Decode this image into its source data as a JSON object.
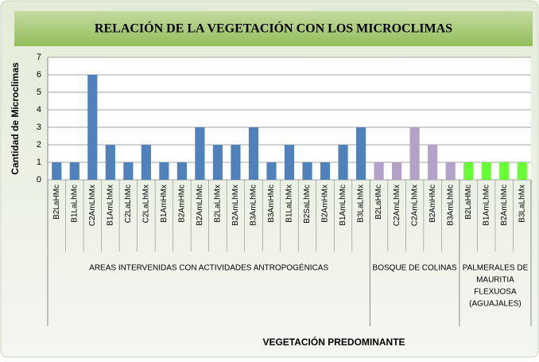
{
  "chart_data": {
    "type": "bar",
    "title": "RELACIÓN DE LA VEGETACIÓN CON LOS MICROCLIMAS",
    "y_label": "Cantidad de Microclimas",
    "x_label": "VEGETACIÓN  PREDOMINANTE",
    "ylim": [
      0,
      7
    ],
    "yticks": [
      0,
      1,
      2,
      3,
      4,
      5,
      6,
      7
    ],
    "grid": true,
    "groups": [
      {
        "label": [
          "AREAS INTERVENIDAS CON ACTIVIDADES ANTROPOGÉNICAS"
        ],
        "color": "#4f81bd",
        "categories": [
          "B2LaHMc",
          "B1LaLhMc",
          "C2AmLhMx",
          "B1AmLhMx",
          "C2LaLhMc",
          "C2LaLhMx",
          "B1AmHMx",
          "B2AmHMc",
          "B2AmLhMc",
          "B2LaLhMx",
          "B2AmLhMx",
          "B3AmLhMc",
          "B3AmHMc",
          "B1LaLhMx",
          "B2SaLhMc",
          "B2AmHMx",
          "B1AmLhMc",
          "B3LaLhMx"
        ],
        "values": [
          1,
          1,
          6,
          2,
          1,
          2,
          1,
          1,
          3,
          2,
          2,
          3,
          1,
          2,
          1,
          1,
          2,
          3
        ]
      },
      {
        "label": [
          "BOSQUE DE COLINAS"
        ],
        "color": "#b3a2c7",
        "categories": [
          "B2LaHMc",
          "C2AmLhMx",
          "C2AmLhMx",
          "B2AmHMc",
          "B3AmLhMc"
        ],
        "values": [
          1,
          1,
          3,
          2,
          1
        ]
      },
      {
        "label": [
          "PALMERALES DE",
          "MAURITIA",
          "FLEXUOSA",
          "(AGUAJALES)"
        ],
        "color": "#66ff33",
        "categories": [
          "B2LaHMc",
          "B1AmLhMc",
          "B2AmLhMc",
          "B3LaLhMx"
        ],
        "values": [
          1,
          1,
          1,
          1
        ]
      }
    ]
  }
}
